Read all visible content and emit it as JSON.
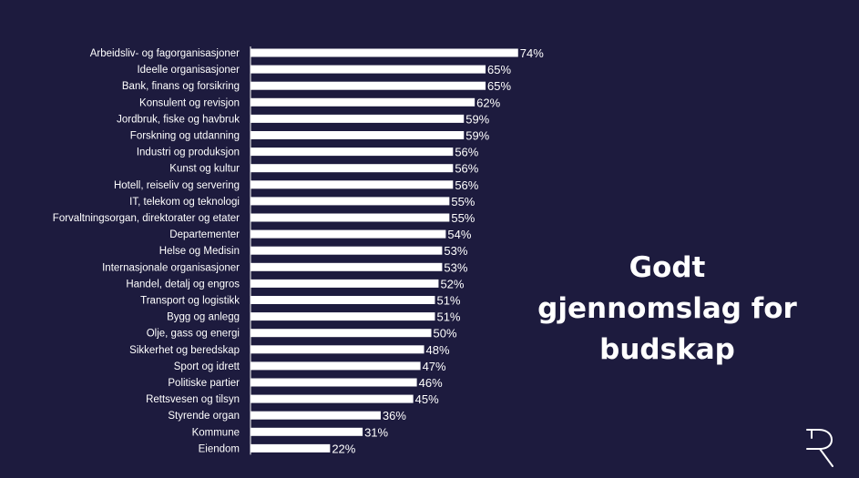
{
  "headline": {
    "line1": "Godt",
    "line2": "gjennomslag for",
    "line3": "budskap"
  },
  "logo": {
    "icon": "r-logo-icon"
  },
  "colors": {
    "background": "#1d1b3e",
    "bar": "#ffffff",
    "text": "#ffffff"
  },
  "chart_data": {
    "type": "bar",
    "orientation": "horizontal",
    "categories": [
      "Arbeidsliv- og fagorganisasjoner",
      "Ideelle organisasjoner",
      "Bank, finans og forsikring",
      "Konsulent og revisjon",
      "Jordbruk, fiske og havbruk",
      "Forskning og utdanning",
      "Industri og produksjon",
      "Kunst og kultur",
      "Hotell, reiseliv og servering",
      "IT, telekom og teknologi",
      "Forvaltningsorgan, direktorater og etater",
      "Departementer",
      "Helse og Medisin",
      "Internasjonale organisasjoner",
      "Handel, detalj og engros",
      "Transport og logistikk",
      "Bygg og anlegg",
      "Olje, gass og energi",
      "Sikkerhet og beredskap",
      "Sport og idrett",
      "Politiske partier",
      "Rettsvesen og tilsyn",
      "Styrende organ",
      "Kommune",
      "Eiendom"
    ],
    "values": [
      74,
      65,
      65,
      62,
      59,
      59,
      56,
      56,
      56,
      55,
      55,
      54,
      53,
      53,
      52,
      51,
      51,
      50,
      48,
      47,
      46,
      45,
      36,
      31,
      22
    ],
    "value_labels": [
      "74%",
      "65%",
      "65%",
      "62%",
      "59%",
      "59%",
      "56%",
      "56%",
      "56%",
      "55%",
      "55%",
      "54%",
      "53%",
      "53%",
      "52%",
      "51%",
      "51%",
      "50%",
      "48%",
      "47%",
      "46%",
      "45%",
      "36%",
      "31%",
      "22%"
    ],
    "unit": "%",
    "xlim": [
      0,
      100
    ],
    "grid": false,
    "legend": "none"
  }
}
